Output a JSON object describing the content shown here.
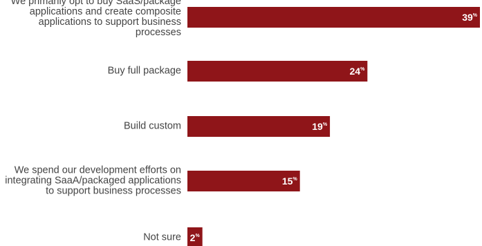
{
  "chart_data": {
    "type": "bar",
    "orientation": "horizontal",
    "categories": [
      "We primarily opt to buy SaaS/package applications and create composite applications to support business processes",
      "Buy full package",
      "Build custom",
      "We spend our development efforts on integrating SaaA/packaged applications to support business processes",
      "Not sure"
    ],
    "values": [
      39,
      24,
      19,
      15,
      2
    ],
    "value_suffix": "%",
    "bar_color": "#8f1519",
    "label_color": "#ffffff",
    "category_label_color": "#444444",
    "xlim": [
      0,
      39
    ],
    "grid": false,
    "legend": "none",
    "title": "",
    "xlabel": "",
    "ylabel": ""
  }
}
